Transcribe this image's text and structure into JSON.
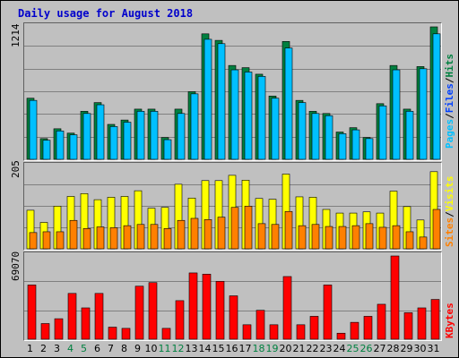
{
  "title": "Daily usage for August 2018",
  "chart_data": [
    {
      "type": "bar",
      "name": "hits-files-pages",
      "max_label": "1214",
      "max": 1214,
      "categories": [
        "1",
        "2",
        "3",
        "4",
        "5",
        "6",
        "7",
        "8",
        "9",
        "10",
        "11",
        "12",
        "13",
        "14",
        "15",
        "16",
        "17",
        "18",
        "19",
        "20",
        "21",
        "22",
        "23",
        "24",
        "25",
        "26",
        "27",
        "28",
        "29",
        "30",
        "31"
      ],
      "legend": [
        "Pages",
        "Files",
        "Hits"
      ],
      "series": [
        {
          "name": "Hits",
          "values": [
            560,
            190,
            280,
            240,
            440,
            520,
            320,
            360,
            460,
            460,
            200,
            460,
            620,
            1150,
            1090,
            860,
            840,
            780,
            580,
            1080,
            540,
            440,
            420,
            250,
            290,
            200,
            510,
            860,
            460,
            850,
            1214
          ]
        },
        {
          "name": "Files",
          "values": [
            540,
            175,
            260,
            225,
            420,
            500,
            300,
            340,
            440,
            440,
            180,
            420,
            600,
            1100,
            1060,
            820,
            800,
            760,
            560,
            1020,
            520,
            420,
            400,
            235,
            270,
            190,
            490,
            820,
            440,
            830,
            1150
          ]
        },
        {
          "name": "Pages",
          "values": [
            0,
            0,
            0,
            0,
            0,
            0,
            0,
            0,
            0,
            0,
            0,
            0,
            0,
            0,
            0,
            0,
            0,
            0,
            0,
            0,
            0,
            0,
            0,
            0,
            0,
            0,
            0,
            0,
            0,
            0,
            0
          ]
        }
      ]
    },
    {
      "type": "bar",
      "name": "visits-sites",
      "max_label": "205",
      "max": 205,
      "legend": [
        "Sites",
        "Visits"
      ],
      "series": [
        {
          "name": "Visits",
          "values": [
            95,
            65,
            105,
            129,
            136,
            121,
            127,
            129,
            143,
            100,
            102,
            159,
            125,
            168,
            168,
            181,
            169,
            124,
            122,
            184,
            128,
            127,
            97,
            88,
            88,
            91,
            88,
            142,
            104,
            71,
            190
          ]
        },
        {
          "name": "Sites",
          "values": [
            40,
            42,
            42,
            70,
            50,
            54,
            52,
            57,
            60,
            60,
            50,
            70,
            75,
            72,
            78,
            102,
            105,
            62,
            60,
            92,
            57,
            60,
            55,
            55,
            57,
            62,
            53,
            57,
            42,
            29,
            97
          ]
        }
      ]
    },
    {
      "type": "bar",
      "name": "kbytes",
      "max_label": "69070",
      "max": 69070,
      "legend": [
        "KBytes"
      ],
      "series": [
        {
          "name": "KBytes",
          "values": [
            45000,
            13000,
            17000,
            38000,
            26000,
            38000,
            10000,
            9000,
            44000,
            47000,
            9000,
            32000,
            55000,
            54000,
            48000,
            36000,
            12000,
            24000,
            12000,
            52000,
            12000,
            19000,
            45000,
            5000,
            14000,
            19000,
            29000,
            69070,
            22000,
            26000,
            33000
          ]
        }
      ]
    }
  ],
  "colors": {
    "hits": "#008040",
    "files": "#0040ff",
    "pages": "#00c0ff",
    "visits": "#ffff00",
    "sites": "#ff8000",
    "kbytes": "#ff0000",
    "weekend_day": "#008040",
    "weekday": "#000000"
  },
  "weekend_days": [
    "4",
    "5",
    "11",
    "12",
    "18",
    "19",
    "25",
    "26"
  ]
}
